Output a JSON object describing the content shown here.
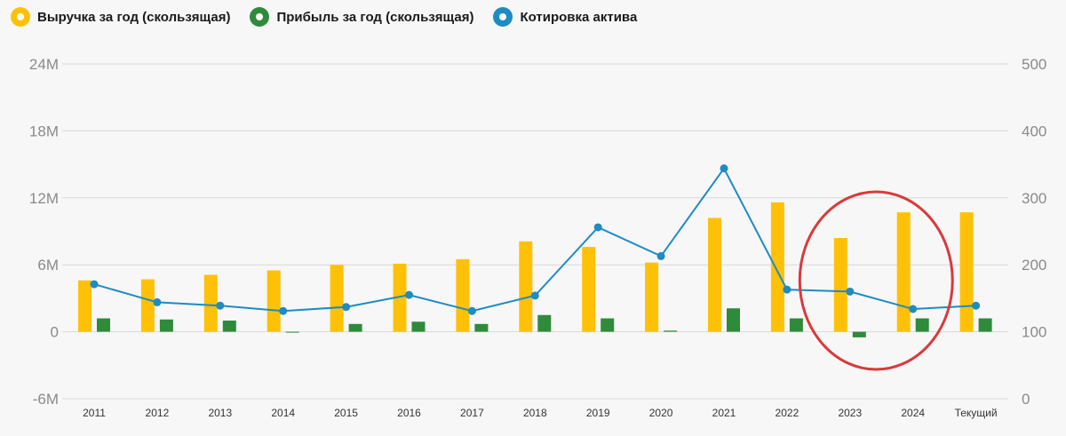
{
  "legend": {
    "revenue_label": "Выручка за год (скользящая)",
    "profit_label": "Прибыль за год (скользящая)",
    "price_label": "Котировка актива"
  },
  "colors": {
    "revenue": "#ffc107",
    "profit": "#2e8b3a",
    "price": "#1e8bc3",
    "highlight_circle": "#d93a3a",
    "grid": "#d9d9d9"
  },
  "chart_data": {
    "type": "bar",
    "categories": [
      "2011",
      "2012",
      "2013",
      "2014",
      "2015",
      "2016",
      "2017",
      "2018",
      "2019",
      "2020",
      "2021",
      "2022",
      "2023",
      "2024",
      "Текущий"
    ],
    "series": [
      {
        "key": "revenue",
        "name": "Выручка за год (скользящая)",
        "type": "bar",
        "axis": "left",
        "values": [
          4.6,
          4.7,
          5.1,
          5.5,
          6.0,
          6.1,
          6.5,
          8.1,
          7.6,
          6.2,
          10.2,
          11.6,
          8.4,
          10.7,
          10.7
        ]
      },
      {
        "key": "profit",
        "name": "Прибыль за год (скользящая)",
        "type": "bar",
        "axis": "left",
        "values": [
          1.2,
          1.1,
          1.0,
          0.0,
          0.7,
          0.9,
          0.7,
          1.5,
          1.2,
          0.1,
          2.1,
          1.2,
          -0.5,
          1.2,
          1.2
        ]
      },
      {
        "key": "price",
        "name": "Котировка актива",
        "type": "line",
        "axis": "right",
        "values": [
          171,
          144,
          139,
          131,
          137,
          155,
          131,
          154,
          256,
          213,
          344,
          163,
          160,
          134,
          139
        ]
      }
    ],
    "y_left": {
      "ylim": [
        -6,
        24
      ],
      "ticks": [
        -6,
        0,
        6,
        12,
        18,
        24
      ],
      "tick_labels": [
        "-6M",
        "0",
        "6M",
        "12M",
        "18M",
        "24M"
      ]
    },
    "y_right": {
      "ylim": [
        0,
        500
      ],
      "ticks": [
        0,
        100,
        200,
        300,
        400,
        500
      ],
      "tick_labels": [
        "0",
        "100",
        "200",
        "300",
        "400",
        "500"
      ]
    },
    "grid": true,
    "legend_position": "top-left",
    "annotation": {
      "type": "ellipse",
      "encloses_categories": [
        "2023",
        "2024"
      ]
    }
  }
}
